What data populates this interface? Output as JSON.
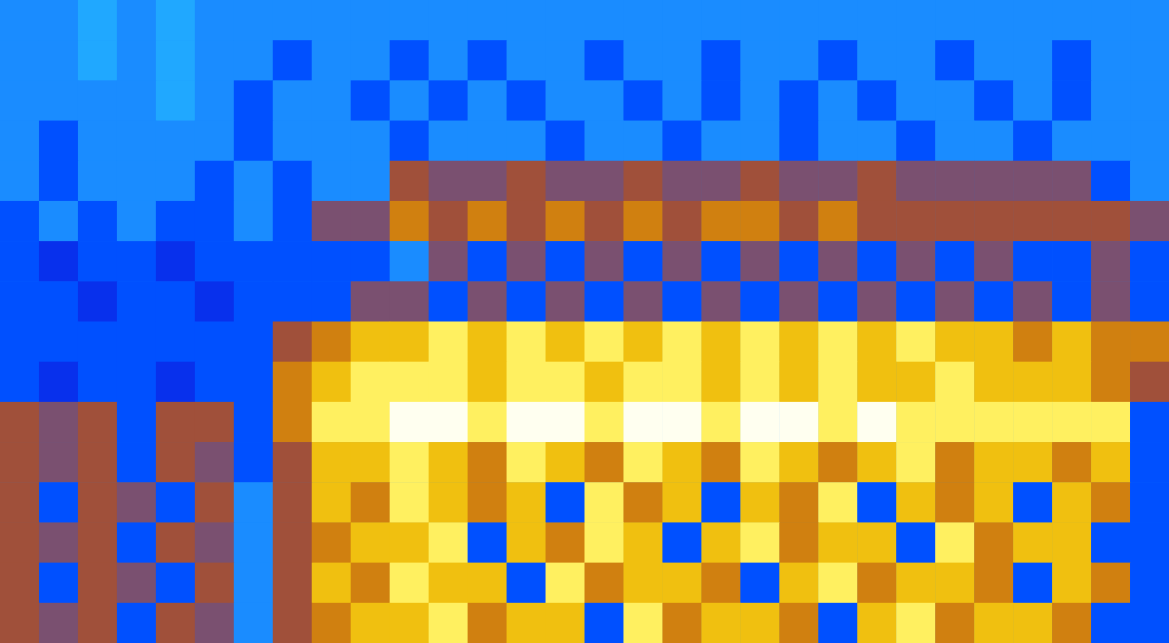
{
  "chart_data": {
    "type": "heatmap",
    "zlim": [
      0,
      10
    ],
    "tick_labels": false,
    "grid": false,
    "cells": [
      [
        3,
        3,
        4,
        3,
        4,
        3,
        3,
        3,
        3,
        3,
        3,
        3,
        3,
        3,
        3,
        3,
        3,
        3,
        3,
        3,
        3,
        3,
        3,
        3,
        3,
        3,
        3,
        3,
        3,
        3
      ],
      [
        3,
        3,
        4,
        3,
        4,
        3,
        3,
        2,
        3,
        3,
        2,
        3,
        2,
        3,
        3,
        2,
        3,
        3,
        2,
        3,
        3,
        2,
        3,
        3,
        2,
        3,
        3,
        2,
        3,
        3
      ],
      [
        3,
        3,
        3,
        3,
        4,
        3,
        2,
        3,
        3,
        2,
        3,
        2,
        3,
        2,
        3,
        3,
        2,
        3,
        2,
        3,
        2,
        3,
        2,
        3,
        3,
        2,
        3,
        2,
        3,
        3
      ],
      [
        3,
        2,
        3,
        3,
        3,
        3,
        2,
        3,
        3,
        3,
        2,
        3,
        3,
        3,
        2,
        3,
        3,
        2,
        3,
        3,
        2,
        3,
        3,
        2,
        3,
        3,
        2,
        3,
        3,
        3
      ],
      [
        3,
        2,
        3,
        3,
        3,
        2,
        3,
        2,
        3,
        3,
        6,
        5,
        5,
        6,
        5,
        5,
        6,
        5,
        5,
        6,
        5,
        5,
        6,
        5,
        5,
        5,
        5,
        5,
        2,
        3
      ],
      [
        2,
        3,
        2,
        3,
        2,
        2,
        3,
        2,
        5,
        5,
        7,
        6,
        7,
        6,
        7,
        6,
        7,
        6,
        7,
        7,
        6,
        7,
        6,
        6,
        6,
        6,
        6,
        6,
        6,
        5
      ],
      [
        2,
        1,
        2,
        2,
        1,
        2,
        2,
        2,
        2,
        2,
        3,
        5,
        2,
        5,
        2,
        5,
        2,
        5,
        2,
        5,
        2,
        5,
        2,
        5,
        2,
        5,
        2,
        2,
        5,
        2
      ],
      [
        2,
        2,
        1,
        2,
        2,
        1,
        2,
        2,
        2,
        5,
        5,
        2,
        5,
        2,
        5,
        2,
        5,
        2,
        5,
        2,
        5,
        2,
        5,
        2,
        5,
        2,
        5,
        2,
        5,
        2
      ],
      [
        2,
        2,
        2,
        2,
        2,
        2,
        2,
        6,
        7,
        8,
        8,
        9,
        8,
        9,
        8,
        9,
        8,
        9,
        8,
        9,
        8,
        9,
        8,
        9,
        8,
        8,
        7,
        8,
        7,
        7
      ],
      [
        2,
        1,
        2,
        2,
        1,
        2,
        2,
        7,
        8,
        9,
        9,
        9,
        8,
        9,
        9,
        8,
        9,
        9,
        8,
        9,
        8,
        9,
        8,
        8,
        9,
        8,
        8,
        8,
        7,
        6
      ],
      [
        6,
        5,
        6,
        2,
        6,
        6,
        2,
        7,
        9,
        9,
        10,
        10,
        9,
        10,
        10,
        9,
        10,
        10,
        9,
        10,
        10,
        9,
        10,
        9,
        9,
        9,
        9,
        9,
        9,
        2
      ],
      [
        6,
        5,
        6,
        2,
        6,
        5,
        2,
        6,
        8,
        8,
        9,
        8,
        7,
        9,
        8,
        7,
        9,
        8,
        7,
        9,
        8,
        7,
        8,
        9,
        7,
        8,
        8,
        7,
        8,
        2
      ],
      [
        6,
        2,
        6,
        5,
        2,
        6,
        3,
        6,
        8,
        7,
        9,
        8,
        7,
        8,
        2,
        9,
        7,
        8,
        2,
        8,
        7,
        9,
        2,
        8,
        7,
        8,
        2,
        8,
        7,
        2
      ],
      [
        6,
        5,
        6,
        2,
        6,
        5,
        3,
        6,
        7,
        8,
        8,
        9,
        2,
        8,
        7,
        9,
        8,
        2,
        8,
        9,
        7,
        8,
        8,
        2,
        9,
        7,
        8,
        8,
        2,
        2
      ],
      [
        6,
        2,
        6,
        5,
        2,
        6,
        3,
        6,
        8,
        7,
        9,
        8,
        8,
        2,
        9,
        7,
        8,
        8,
        7,
        2,
        8,
        9,
        7,
        8,
        8,
        7,
        2,
        8,
        7,
        2
      ],
      [
        6,
        5,
        6,
        2,
        6,
        5,
        3,
        6,
        7,
        8,
        8,
        9,
        7,
        8,
        8,
        2,
        9,
        7,
        8,
        8,
        7,
        2,
        8,
        9,
        7,
        8,
        8,
        7,
        2,
        2
      ]
    ]
  }
}
